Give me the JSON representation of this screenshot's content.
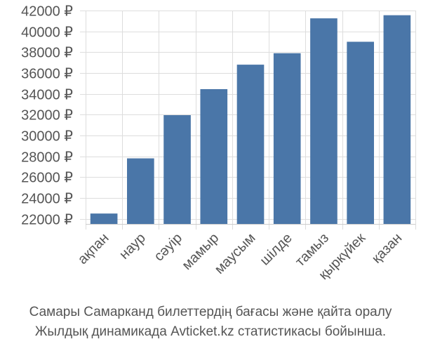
{
  "chart_data": {
    "type": "bar",
    "title": "",
    "xlabel": "",
    "ylabel": "",
    "categories": [
      "ақпан",
      "наур",
      "сәуір",
      "мамыр",
      "маусым",
      "шілде",
      "тамыз",
      "қыркүйек",
      "қазан"
    ],
    "values": [
      22500,
      27800,
      31950,
      34450,
      36800,
      37900,
      41250,
      39000,
      41550
    ],
    "ylim": [
      21500,
      42000
    ],
    "yticks": [
      22000,
      24000,
      26000,
      28000,
      30000,
      32000,
      34000,
      36000,
      38000,
      40000,
      42000
    ],
    "ytick_labels": [
      "22000 ₽",
      "24000 ₽",
      "26000 ₽",
      "28000 ₽",
      "30000 ₽",
      "32000 ₽",
      "34000 ₽",
      "36000 ₽",
      "38000 ₽",
      "40000 ₽",
      "42000 ₽"
    ],
    "grid": true,
    "bar_color": "#4a76a8"
  },
  "caption": {
    "line1": "Самары Самарканд билеттердің бағасы және қайта оралу",
    "line2": "Жылдық динамикада Avticket.kz статистикасы бойынша."
  }
}
